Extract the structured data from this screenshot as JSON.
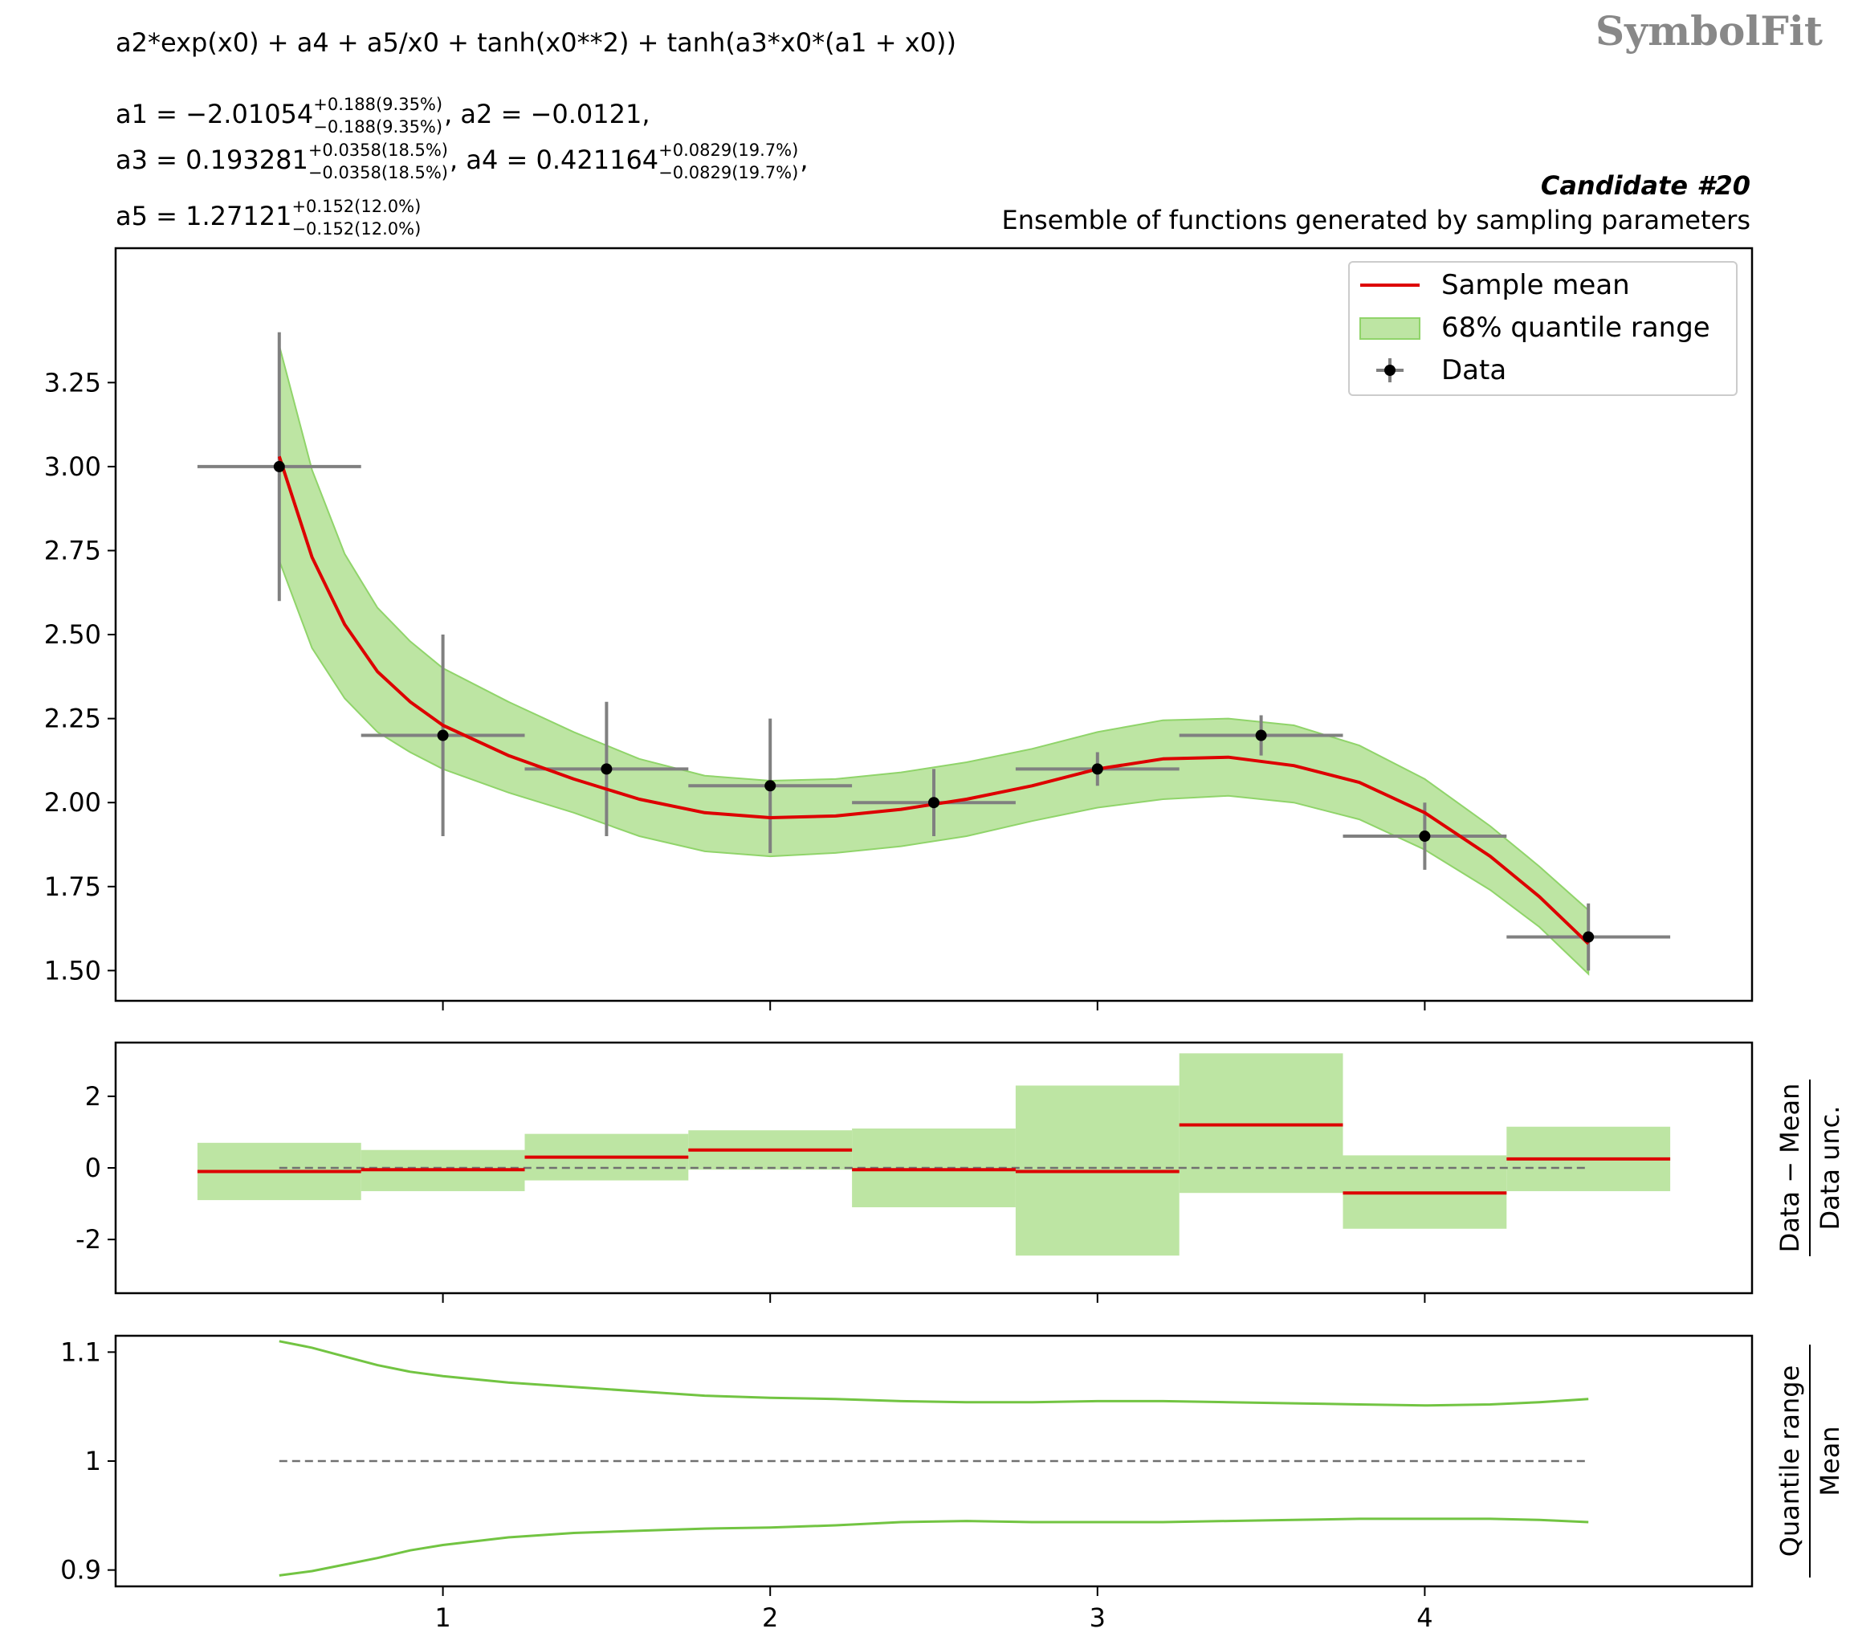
{
  "header": {
    "formula": "a2*exp(x0) + a4 + a5/x0 + tanh(x0**2) + tanh(a3*x0*(a1 + x0))",
    "params_line1": [
      {
        "name": "a1",
        "value": "−2.01054",
        "up": "+0.188(9.35%)",
        "down": "−0.188(9.35%)",
        "trail": ","
      },
      {
        "name": "a2",
        "value": "−0.0121",
        "trail": ","
      }
    ],
    "params_line2": [
      {
        "name": "a3",
        "value": "0.193281",
        "up": "+0.0358(18.5%)",
        "down": "−0.0358(18.5%)",
        "trail": ","
      },
      {
        "name": "a4",
        "value": "0.421164",
        "up": "+0.0829(19.7%)",
        "down": "−0.0829(19.7%)",
        "trail": ","
      }
    ],
    "params_line3": [
      {
        "name": "a5",
        "value": "1.27121",
        "up": "+0.152(12.0%)",
        "down": "−0.152(12.0%)",
        "trail": ""
      }
    ],
    "candidate": "Candidate #20",
    "subtitle": "Ensemble of functions generated by sampling parameters",
    "logo": "SymbolFit"
  },
  "colors": {
    "mean": "#dd0000",
    "band": "#bde5a3",
    "band_edge": "#90d46a",
    "quantile_line": "#72c442",
    "data": "#000000",
    "errorbar": "#808080",
    "ref_dashed": "#707070"
  },
  "chart_data": [
    {
      "type": "line",
      "panel": "main",
      "xlim": [
        0.0,
        5.0
      ],
      "ylim": [
        1.41,
        3.65
      ],
      "yticks": [
        1.5,
        1.75,
        2.0,
        2.25,
        2.5,
        2.75,
        3.0,
        3.25
      ],
      "ytick_labels": [
        "1.50",
        "1.75",
        "2.00",
        "2.25",
        "2.50",
        "2.75",
        "3.00",
        "3.25"
      ],
      "xticks": [
        1,
        2,
        3,
        4
      ],
      "legend": {
        "position": "top-right",
        "entries": [
          "Sample mean",
          "68% quantile range",
          "Data"
        ]
      },
      "data": {
        "x": [
          0.5,
          1.0,
          1.5,
          2.0,
          2.5,
          3.0,
          3.5,
          4.0,
          4.5
        ],
        "y": [
          3.0,
          2.2,
          2.1,
          2.05,
          2.0,
          2.1,
          2.2,
          1.9,
          1.6
        ],
        "xerr": 0.25,
        "yerr": [
          0.4,
          0.3,
          0.2,
          0.2,
          0.1,
          0.05,
          0.06,
          0.1,
          0.1
        ]
      },
      "mean": {
        "x": [
          0.5,
          0.6,
          0.7,
          0.8,
          0.9,
          1.0,
          1.2,
          1.4,
          1.6,
          1.8,
          2.0,
          2.2,
          2.4,
          2.6,
          2.8,
          3.0,
          3.2,
          3.4,
          3.6,
          3.8,
          4.0,
          4.2,
          4.35,
          4.5
        ],
        "y": [
          3.03,
          2.73,
          2.53,
          2.39,
          2.3,
          2.23,
          2.14,
          2.07,
          2.01,
          1.97,
          1.955,
          1.96,
          1.98,
          2.01,
          2.05,
          2.1,
          2.13,
          2.135,
          2.11,
          2.06,
          1.97,
          1.84,
          1.72,
          1.58
        ]
      },
      "band_upper": {
        "x": [
          0.5,
          0.6,
          0.7,
          0.8,
          0.9,
          1.0,
          1.2,
          1.4,
          1.6,
          1.8,
          2.0,
          2.2,
          2.4,
          2.6,
          2.8,
          3.0,
          3.2,
          3.4,
          3.6,
          3.8,
          4.0,
          4.2,
          4.35,
          4.5
        ],
        "y": [
          3.36,
          2.99,
          2.74,
          2.58,
          2.48,
          2.4,
          2.3,
          2.21,
          2.13,
          2.08,
          2.065,
          2.07,
          2.09,
          2.12,
          2.16,
          2.21,
          2.245,
          2.25,
          2.23,
          2.17,
          2.07,
          1.93,
          1.81,
          1.68
        ]
      },
      "band_lower": {
        "x": [
          0.5,
          0.6,
          0.7,
          0.8,
          0.9,
          1.0,
          1.2,
          1.4,
          1.6,
          1.8,
          2.0,
          2.2,
          2.4,
          2.6,
          2.8,
          3.0,
          3.2,
          3.4,
          3.6,
          3.8,
          4.0,
          4.2,
          4.35,
          4.5
        ],
        "y": [
          2.72,
          2.46,
          2.31,
          2.21,
          2.15,
          2.1,
          2.03,
          1.97,
          1.9,
          1.855,
          1.84,
          1.85,
          1.87,
          1.9,
          1.945,
          1.985,
          2.01,
          2.02,
          2.0,
          1.95,
          1.86,
          1.74,
          1.63,
          1.49
        ]
      }
    },
    {
      "type": "bar",
      "panel": "pull",
      "ylabel": [
        "Data − Mean",
        "Data unc."
      ],
      "xlim": [
        0.0,
        5.0
      ],
      "ylim": [
        -3.5,
        3.5
      ],
      "yticks": [
        -2,
        0,
        2
      ],
      "ytick_labels": [
        "-2",
        "0",
        "2"
      ],
      "xticks": [
        1,
        2,
        3,
        4
      ],
      "bins": [
        {
          "x0": 0.25,
          "x1": 0.75,
          "mean": -0.1,
          "lo": -0.9,
          "hi": 0.7
        },
        {
          "x0": 0.75,
          "x1": 1.25,
          "mean": -0.05,
          "lo": -0.65,
          "hi": 0.5
        },
        {
          "x0": 1.25,
          "x1": 1.75,
          "mean": 0.3,
          "lo": -0.35,
          "hi": 0.95
        },
        {
          "x0": 1.75,
          "x1": 2.25,
          "mean": 0.5,
          "lo": -0.05,
          "hi": 1.05
        },
        {
          "x0": 2.25,
          "x1": 2.75,
          "mean": -0.05,
          "lo": -1.1,
          "hi": 1.1
        },
        {
          "x0": 2.75,
          "x1": 3.25,
          "mean": -0.1,
          "lo": -2.45,
          "hi": 2.3
        },
        {
          "x0": 3.25,
          "x1": 3.75,
          "mean": 1.2,
          "lo": -0.7,
          "hi": 3.2
        },
        {
          "x0": 3.75,
          "x1": 4.25,
          "mean": -0.7,
          "lo": -1.7,
          "hi": 0.35
        },
        {
          "x0": 4.25,
          "x1": 4.75,
          "mean": 0.25,
          "lo": -0.65,
          "hi": 1.15
        }
      ]
    },
    {
      "type": "line",
      "panel": "ratio",
      "ylabel": [
        "Quantile range",
        "Mean"
      ],
      "xlim": [
        0.0,
        5.0
      ],
      "ylim": [
        0.885,
        1.115
      ],
      "yticks": [
        0.9,
        1.0,
        1.1
      ],
      "ytick_labels": [
        "0.9",
        "1",
        "1.1"
      ],
      "xticks": [
        1,
        2,
        3,
        4
      ],
      "xtick_labels": [
        "1",
        "2",
        "3",
        "4"
      ],
      "upper": {
        "x": [
          0.5,
          0.6,
          0.7,
          0.8,
          0.9,
          1.0,
          1.2,
          1.4,
          1.6,
          1.8,
          2.0,
          2.2,
          2.4,
          2.6,
          2.8,
          3.0,
          3.2,
          3.4,
          3.6,
          3.8,
          4.0,
          4.2,
          4.35,
          4.5
        ],
        "y": [
          1.11,
          1.104,
          1.096,
          1.088,
          1.082,
          1.078,
          1.072,
          1.068,
          1.064,
          1.06,
          1.058,
          1.057,
          1.055,
          1.054,
          1.054,
          1.055,
          1.055,
          1.054,
          1.053,
          1.052,
          1.051,
          1.052,
          1.054,
          1.057
        ]
      },
      "lower": {
        "x": [
          0.5,
          0.6,
          0.7,
          0.8,
          0.9,
          1.0,
          1.2,
          1.4,
          1.6,
          1.8,
          2.0,
          2.2,
          2.4,
          2.6,
          2.8,
          3.0,
          3.2,
          3.4,
          3.6,
          3.8,
          4.0,
          4.2,
          4.35,
          4.5
        ],
        "y": [
          0.895,
          0.899,
          0.905,
          0.911,
          0.918,
          0.923,
          0.93,
          0.934,
          0.936,
          0.938,
          0.939,
          0.941,
          0.944,
          0.945,
          0.944,
          0.944,
          0.944,
          0.945,
          0.946,
          0.947,
          0.947,
          0.947,
          0.946,
          0.944
        ]
      },
      "reference": 1.0
    }
  ]
}
